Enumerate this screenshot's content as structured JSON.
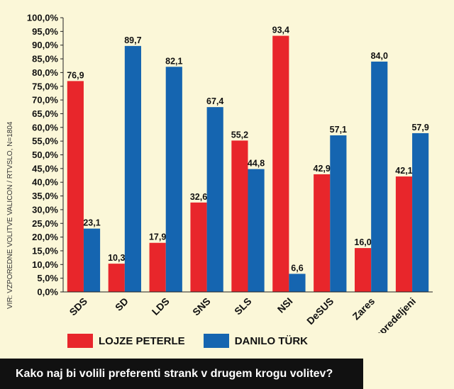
{
  "chart_data": {
    "type": "bar",
    "title": "Kako naj bi volili preferenti strank v drugem krogu volitev?",
    "source": "VIR: VZPOREDNE VOLITVE VALICON / RTVSLO, N=1804",
    "categories": [
      "SDS",
      "SD",
      "LDS",
      "SNS",
      "SLS",
      "NSI",
      "DeSUS",
      "Zares",
      "neopredeljeni"
    ],
    "series": [
      {
        "name": "LOJZE PETERLE",
        "color": "#e8262b",
        "values": [
          76.9,
          10.3,
          17.9,
          32.6,
          55.2,
          93.4,
          42.9,
          16.0,
          42.1
        ],
        "labels": [
          "76,9",
          "10,3",
          "17,9",
          "32,6",
          "55,2",
          "93,4",
          "42,9",
          "16,0",
          "42,1"
        ]
      },
      {
        "name": "DANILO TÜRK",
        "color": "#1565b0",
        "values": [
          23.1,
          89.7,
          82.1,
          67.4,
          44.8,
          6.6,
          57.1,
          84.0,
          57.9
        ],
        "labels": [
          "23,1",
          "89,7",
          "82,1",
          "67,4",
          "44,8",
          "6,6",
          "57,1",
          "84,0",
          "57,9"
        ]
      }
    ],
    "yticks": [
      "0,0%",
      "5,0%",
      "10,0%",
      "15,0%",
      "20,0%",
      "25,0%",
      "30,0%",
      "35,0%",
      "40,0%",
      "45,0%",
      "50,0%",
      "55,0%",
      "60,0%",
      "65,0%",
      "70,0%",
      "75,0%",
      "80,0%",
      "85,0%",
      "90,0%",
      "95,0%",
      "100,0%"
    ],
    "ylim": [
      0,
      100
    ],
    "grid": false,
    "legend": "bottom"
  }
}
